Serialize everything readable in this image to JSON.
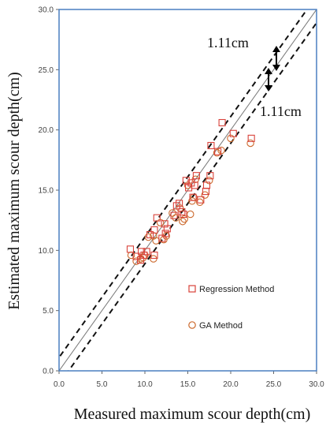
{
  "chart_data": {
    "type": "scatter",
    "title": "",
    "xlabel": "Measured maximum scour depth(cm)",
    "ylabel": "Estimated maximum scour depth(cm)",
    "xlim": [
      0,
      30
    ],
    "ylim": [
      0,
      30
    ],
    "x_ticks": [
      "0.0",
      "5.0",
      "10.0",
      "15.0",
      "20.0",
      "25.0",
      "30.0"
    ],
    "y_ticks": [
      "0.0",
      "5.0",
      "10.0",
      "15.0",
      "20.0",
      "25.0",
      "30.0"
    ],
    "grid": false,
    "legend_position": "lower-right inside plot",
    "series": [
      {
        "name": "Regression Method",
        "marker": "square",
        "color": "#d9423a",
        "points": [
          [
            8.3,
            10.1
          ],
          [
            9.0,
            9.5
          ],
          [
            9.5,
            9.2
          ],
          [
            9.6,
            9.9
          ],
          [
            9.9,
            9.6
          ],
          [
            10.2,
            9.9
          ],
          [
            10.6,
            11.3
          ],
          [
            11.1,
            9.6
          ],
          [
            11.1,
            11.7
          ],
          [
            11.4,
            12.7
          ],
          [
            12.0,
            11.0
          ],
          [
            12.3,
            12.2
          ],
          [
            12.4,
            11.4
          ],
          [
            12.6,
            11.8
          ],
          [
            13.4,
            12.9
          ],
          [
            13.7,
            13.7
          ],
          [
            14.0,
            13.9
          ],
          [
            14.3,
            13.2
          ],
          [
            14.5,
            13.0
          ],
          [
            14.8,
            15.8
          ],
          [
            15.1,
            15.2
          ],
          [
            15.4,
            15.6
          ],
          [
            15.6,
            14.4
          ],
          [
            15.8,
            15.4
          ],
          [
            16.0,
            16.2
          ],
          [
            16.5,
            14.2
          ],
          [
            17.1,
            14.9
          ],
          [
            17.2,
            15.4
          ],
          [
            17.6,
            16.2
          ],
          [
            17.7,
            18.7
          ],
          [
            18.5,
            18.2
          ],
          [
            19.0,
            20.6
          ],
          [
            20.3,
            19.7
          ],
          [
            22.4,
            19.3
          ]
        ]
      },
      {
        "name": "GA Method",
        "marker": "circle",
        "color": "#cc6a2e",
        "points": [
          [
            8.4,
            9.6
          ],
          [
            9.0,
            9.1
          ],
          [
            9.5,
            9.3
          ],
          [
            9.8,
            9.4
          ],
          [
            10.0,
            9.6
          ],
          [
            10.4,
            11.1
          ],
          [
            11.0,
            9.3
          ],
          [
            11.0,
            11.2
          ],
          [
            11.3,
            10.8
          ],
          [
            11.8,
            12.3
          ],
          [
            12.2,
            10.9
          ],
          [
            12.5,
            11.2
          ],
          [
            13.2,
            13.1
          ],
          [
            13.6,
            12.7
          ],
          [
            14.1,
            13.5
          ],
          [
            14.4,
            12.4
          ],
          [
            14.6,
            12.6
          ],
          [
            15.0,
            15.4
          ],
          [
            15.3,
            13.0
          ],
          [
            15.5,
            14.1
          ],
          [
            15.7,
            14.4
          ],
          [
            15.9,
            15.9
          ],
          [
            16.4,
            14.0
          ],
          [
            17.0,
            14.6
          ],
          [
            17.5,
            15.8
          ],
          [
            18.4,
            18.1
          ],
          [
            18.9,
            18.3
          ],
          [
            20.0,
            19.3
          ],
          [
            22.3,
            18.9
          ]
        ]
      }
    ],
    "reference_lines": [
      {
        "name": "line-of-equality",
        "style": "solid",
        "color": "#777777",
        "intercept": 0
      },
      {
        "name": "upper-bound",
        "style": "dashed",
        "color": "#111111",
        "intercept": 1.11
      },
      {
        "name": "lower-bound",
        "style": "dashed",
        "color": "#111111",
        "intercept": -1.11
      }
    ],
    "annotations": [
      {
        "text": "1.11cm",
        "position": "upper, left of arrow"
      },
      {
        "text": "1.11cm",
        "position": "right of lower dashed line"
      }
    ],
    "frame_color": "#4a7fc1"
  }
}
